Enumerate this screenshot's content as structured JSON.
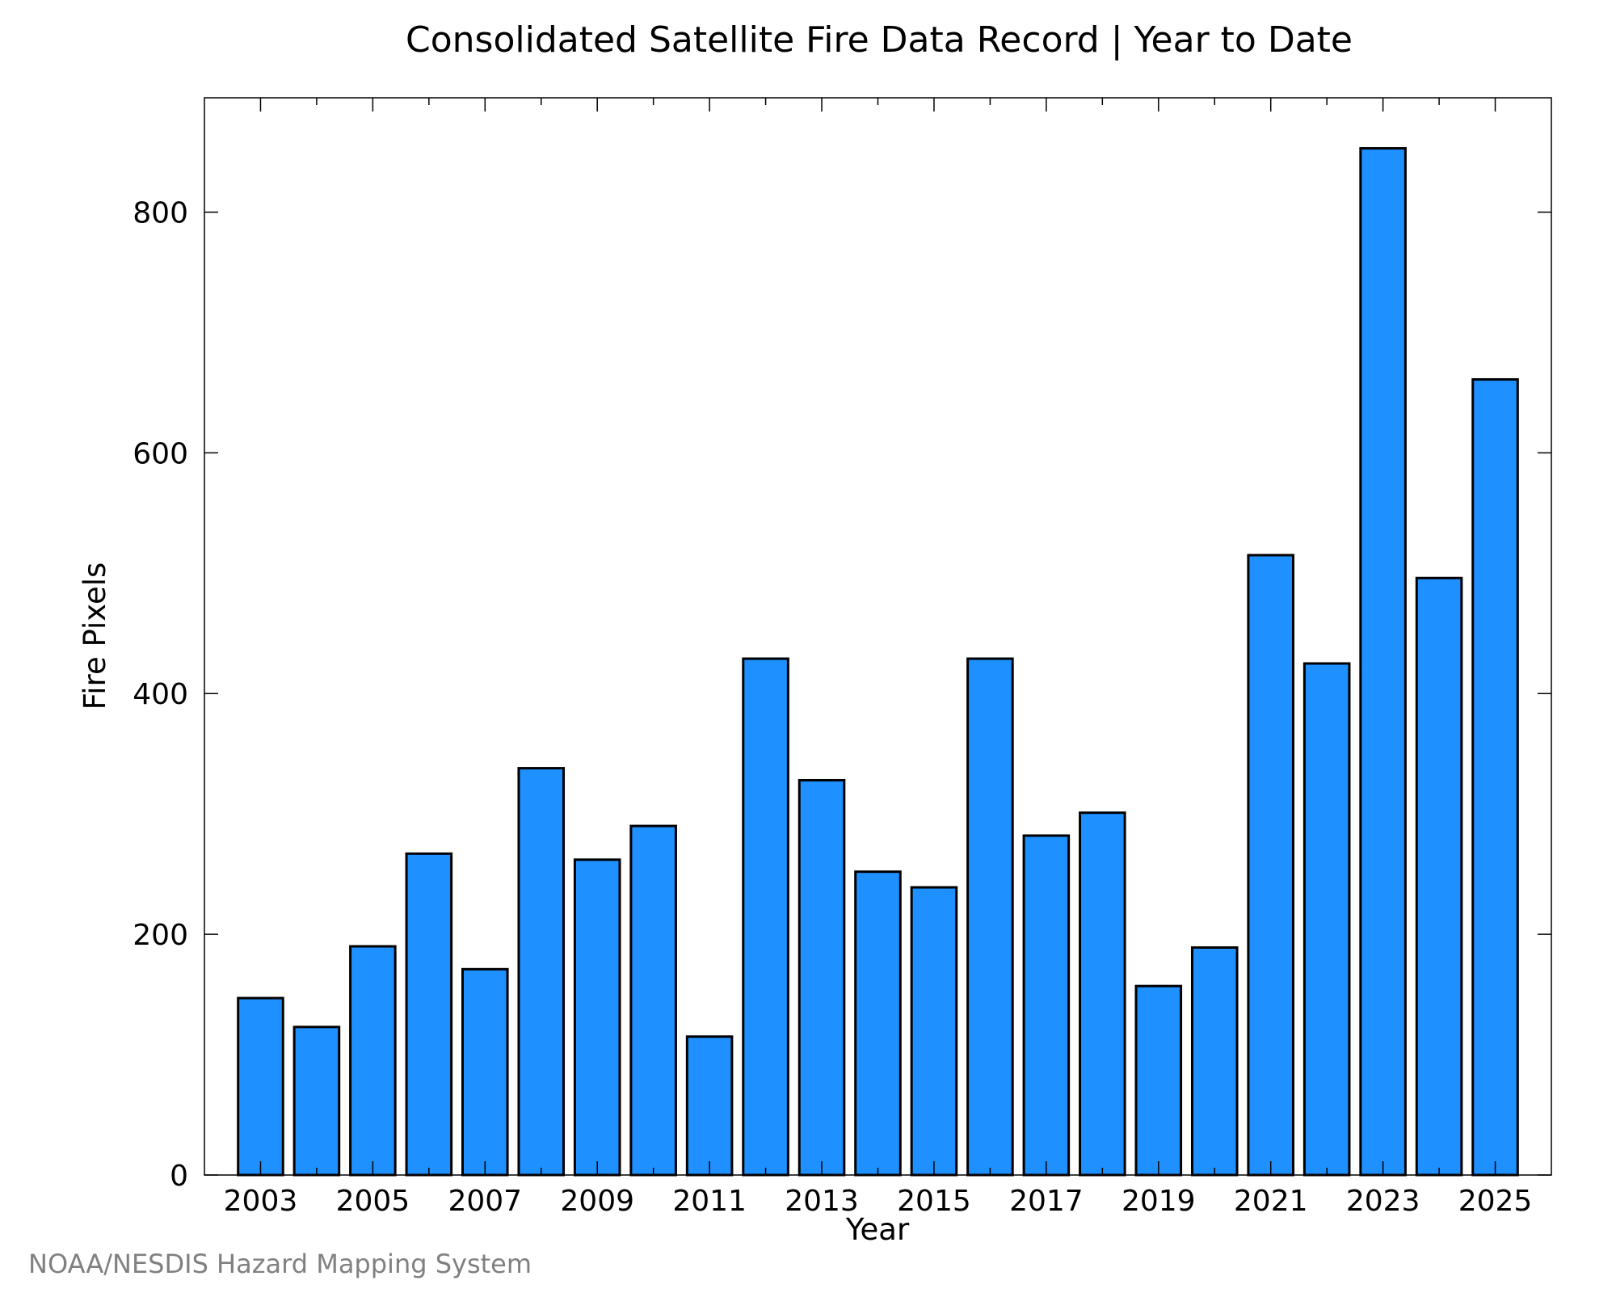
{
  "credit": "NOAA/NESDIS Hazard Mapping System",
  "colors": {
    "bar_fill": "#1E90FF",
    "bar_stroke": "#000000",
    "axis": "#000000",
    "credit_text": "#808080"
  },
  "chart_data": {
    "type": "bar",
    "title": "Consolidated Satellite Fire Data Record | Year to Date",
    "xlabel": "Year",
    "ylabel": "Fire Pixels",
    "categories": [
      "2003",
      "2004",
      "2005",
      "2006",
      "2007",
      "2008",
      "2009",
      "2010",
      "2011",
      "2012",
      "2013",
      "2014",
      "2015",
      "2016",
      "2017",
      "2018",
      "2019",
      "2020",
      "2021",
      "2022",
      "2023",
      "2024",
      "2025"
    ],
    "values": [
      147,
      123,
      190,
      267,
      171,
      338,
      262,
      290,
      115,
      429,
      328,
      252,
      239,
      429,
      282,
      301,
      157,
      189,
      515,
      425,
      853,
      496,
      661
    ],
    "xlim": [
      2002,
      2026
    ],
    "ylim": [
      0,
      895
    ],
    "yticks": [
      0,
      200,
      400,
      600,
      800
    ],
    "xticks": [
      2003,
      2005,
      2007,
      2009,
      2011,
      2013,
      2015,
      2017,
      2019,
      2021,
      2023,
      2025
    ],
    "xticks_minor": [
      2004,
      2006,
      2008,
      2010,
      2012,
      2014,
      2016,
      2018,
      2020,
      2022,
      2024
    ],
    "grid": false,
    "legend": "none"
  }
}
